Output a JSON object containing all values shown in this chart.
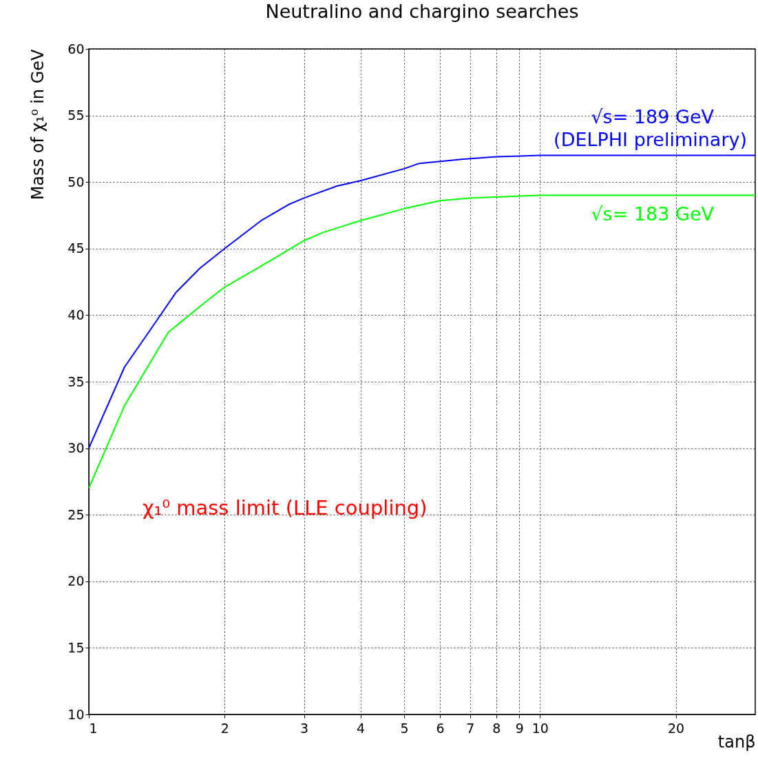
{
  "chart_data": {
    "type": "line",
    "title": "Neutralino and chargino searches",
    "xlabel": "tanβ",
    "ylabel": "Mass of χ₁⁰ in GeV",
    "log": "x",
    "grid": true,
    "legend": false,
    "line_style": "solid",
    "marker": "none",
    "xlim": [
      1,
      30
    ],
    "xticks": [
      1,
      2,
      3,
      4,
      5,
      6,
      7,
      8,
      9,
      10,
      20
    ],
    "ylim": [
      10,
      60
    ],
    "yticks": [
      10,
      15,
      20,
      25,
      30,
      35,
      40,
      45,
      50,
      55,
      60
    ],
    "series": [
      {
        "name": "√s= 189 GeV",
        "color": "#0000ff",
        "x": [
          1,
          1.2,
          1.35,
          1.56,
          1.76,
          2,
          2.41,
          2.77,
          3,
          3.55,
          4,
          5,
          5.4,
          6.7,
          8,
          10,
          12,
          30
        ],
        "values": [
          30,
          36.1,
          38.6,
          41.7,
          43.5,
          45,
          47.1,
          48.3,
          48.8,
          49.7,
          50.1,
          51,
          51.4,
          51.7,
          51.9,
          52,
          52,
          52
        ]
      },
      {
        "name": "√s= 183 GeV",
        "color": "#00ff00",
        "x": [
          1,
          1.2,
          1.5,
          1.8,
          2,
          2.5,
          3,
          3.3,
          4,
          5,
          6,
          7,
          10,
          30
        ],
        "values": [
          27,
          33.2,
          38.7,
          40.9,
          42.1,
          44,
          45.6,
          46.2,
          47.1,
          48,
          48.6,
          48.8,
          49,
          49
        ]
      }
    ],
    "annotations": [
      "(DELPHI preliminary)",
      "χ₁⁰ mass limit (LLE coupling)"
    ]
  }
}
